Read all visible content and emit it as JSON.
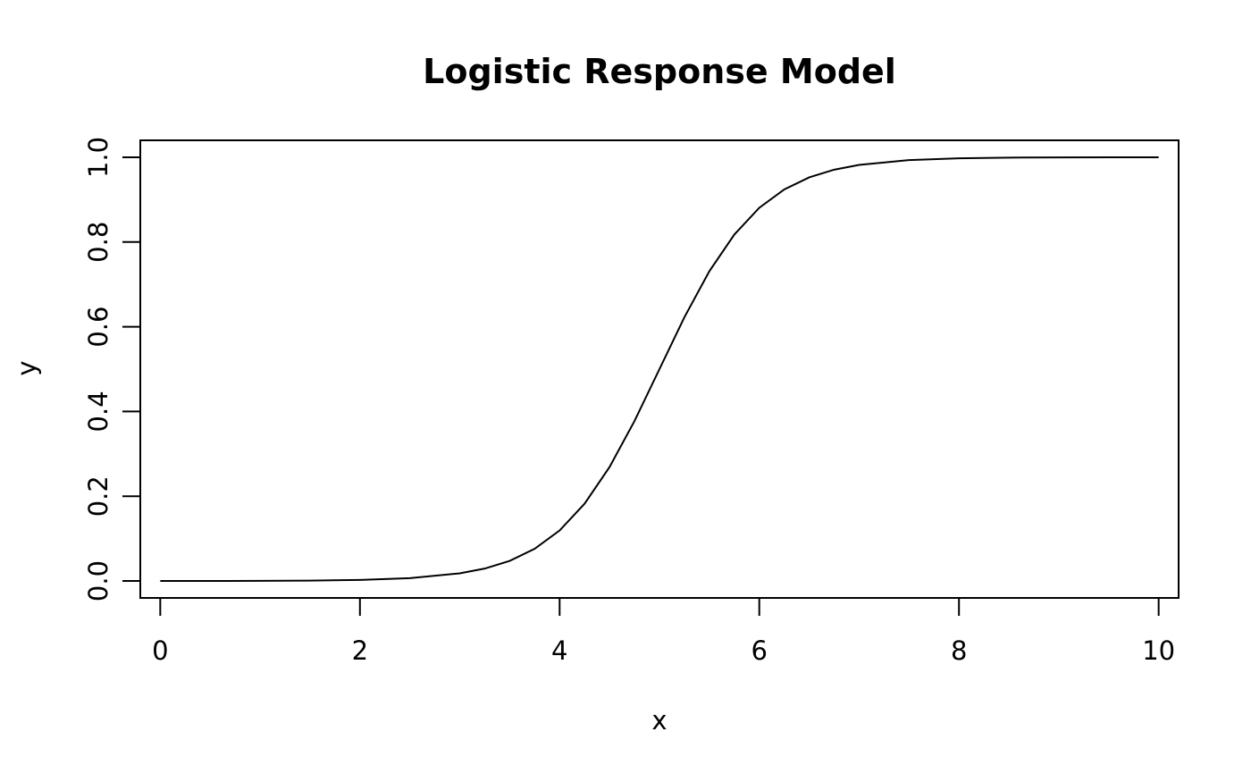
{
  "chart_data": {
    "type": "line",
    "title": "Logistic Response Model",
    "xlabel": "x",
    "ylabel": "y",
    "xlim": [
      -0.2,
      10.2
    ],
    "ylim": [
      -0.04,
      1.04
    ],
    "x_ticks": [
      0,
      2,
      4,
      6,
      8,
      10
    ],
    "x_tick_labels": [
      "0",
      "2",
      "4",
      "6",
      "8",
      "10"
    ],
    "y_ticks": [
      0.0,
      0.2,
      0.4,
      0.6,
      0.8,
      1.0
    ],
    "y_tick_labels": [
      "0.0",
      "0.2",
      "0.4",
      "0.6",
      "0.8",
      "1.0"
    ],
    "grid": false,
    "legend": "none",
    "series": [
      {
        "color": "#000000",
        "x": [
          0,
          0.5,
          1,
          1.5,
          2,
          2.5,
          3,
          3.25,
          3.5,
          3.75,
          4,
          4.25,
          4.5,
          4.75,
          5,
          5.25,
          5.5,
          5.75,
          6,
          6.25,
          6.5,
          6.75,
          7,
          7.5,
          8,
          8.5,
          9,
          9.5,
          10
        ],
        "y": [
          0.0,
          0.0001,
          0.0003,
          0.0008,
          0.0025,
          0.0067,
          0.018,
          0.0293,
          0.0474,
          0.0759,
          0.1192,
          0.1824,
          0.2689,
          0.3775,
          0.5,
          0.6225,
          0.7311,
          0.8176,
          0.8808,
          0.9241,
          0.9526,
          0.9707,
          0.982,
          0.9933,
          0.9975,
          0.9992,
          0.9997,
          0.9999,
          1.0
        ]
      }
    ]
  }
}
